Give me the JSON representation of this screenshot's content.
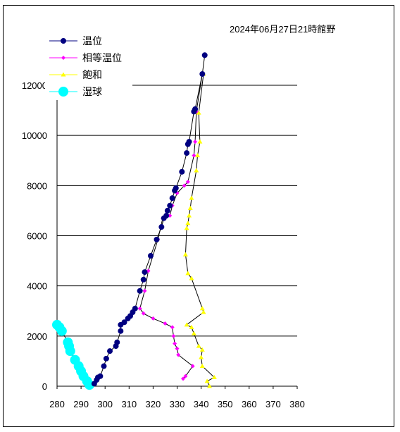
{
  "chart_data": {
    "type": "line",
    "title": "2024年06月27日21時館野",
    "xlabel": "",
    "ylabel": "",
    "xlim": [
      280,
      380
    ],
    "ylim": [
      0,
      12000
    ],
    "x_ticks": [
      "280",
      "290",
      "300",
      "310",
      "320",
      "330",
      "340",
      "350",
      "360",
      "370",
      "380"
    ],
    "y_ticks": [
      "0",
      "2000",
      "4000",
      "6000",
      "8000",
      "10000",
      "12000"
    ],
    "grid": "horizontal",
    "legend_position": "top-left",
    "series": [
      {
        "name": "温位",
        "color": "#000080",
        "marker": "circle",
        "points": [
          [
            295.5,
            100
          ],
          [
            296.5,
            250
          ],
          [
            297,
            350
          ],
          [
            298,
            400
          ],
          [
            299.5,
            800
          ],
          [
            300.5,
            1100
          ],
          [
            302,
            1400
          ],
          [
            304.5,
            1600
          ],
          [
            305,
            1750
          ],
          [
            306.5,
            2200
          ],
          [
            306.5,
            2450
          ],
          [
            308,
            2550
          ],
          [
            309.5,
            2700
          ],
          [
            310.5,
            2800
          ],
          [
            311.5,
            2950
          ],
          [
            312.5,
            3100
          ],
          [
            314.5,
            3800
          ],
          [
            316,
            4250
          ],
          [
            316.5,
            4550
          ],
          [
            319,
            5200
          ],
          [
            321.5,
            5850
          ],
          [
            323.5,
            6350
          ],
          [
            324.5,
            6700
          ],
          [
            325.5,
            6800
          ],
          [
            326,
            7000
          ],
          [
            327,
            7200
          ],
          [
            328,
            7500
          ],
          [
            329,
            7800
          ],
          [
            329.5,
            7900
          ],
          [
            332,
            8550
          ],
          [
            334,
            9300
          ],
          [
            334.5,
            9650
          ],
          [
            335,
            9750
          ],
          [
            337,
            10950
          ],
          [
            337.5,
            11050
          ],
          [
            340.5,
            12450
          ],
          [
            341.5,
            13200
          ]
        ]
      },
      {
        "name": "相等温位",
        "color": "#ff00ff",
        "marker": "diamond",
        "points": [
          [
            332.5,
            300
          ],
          [
            333.5,
            400
          ],
          [
            336.5,
            800
          ],
          [
            330.5,
            1250
          ],
          [
            330,
            1500
          ],
          [
            329,
            1700
          ],
          [
            328.5,
            2000
          ],
          [
            328,
            2350
          ],
          [
            325,
            2500
          ],
          [
            320,
            2700
          ],
          [
            316,
            2900
          ],
          [
            314.5,
            3100
          ],
          [
            316.5,
            3800
          ],
          [
            318,
            4600
          ],
          [
            322,
            5850
          ],
          [
            324,
            6700
          ],
          [
            327,
            6800
          ],
          [
            328,
            7200
          ],
          [
            330,
            7700
          ],
          [
            333,
            8000
          ],
          [
            334.5,
            8150
          ],
          [
            337,
            9200
          ],
          [
            337.5,
            9750
          ],
          [
            338,
            10950
          ],
          [
            340.5,
            12450
          ]
        ]
      },
      {
        "name": "飽和",
        "color": "#ffff00",
        "marker": "triangle",
        "points": [
          [
            343.5,
            0
          ],
          [
            342.5,
            200
          ],
          [
            345.5,
            350
          ],
          [
            340.5,
            800
          ],
          [
            340,
            1150
          ],
          [
            340.5,
            1450
          ],
          [
            339,
            1600
          ],
          [
            337,
            2100
          ],
          [
            336,
            2350
          ],
          [
            334,
            2450
          ],
          [
            341,
            2950
          ],
          [
            340.5,
            3100
          ],
          [
            336,
            4300
          ],
          [
            334.5,
            4500
          ],
          [
            333.5,
            5250
          ],
          [
            334,
            6300
          ],
          [
            334.5,
            6500
          ],
          [
            335,
            6800
          ],
          [
            335.5,
            7100
          ],
          [
            336,
            7500
          ],
          [
            338,
            8600
          ],
          [
            338.5,
            9200
          ],
          [
            339.5,
            9750
          ],
          [
            339,
            10900
          ],
          [
            341,
            12450
          ]
        ]
      },
      {
        "name": "湿球",
        "color": "#00ffff",
        "marker": "big-circle",
        "points": [
          [
            293.5,
            50
          ],
          [
            292.5,
            200
          ],
          [
            291,
            400
          ],
          [
            290,
            600
          ],
          [
            289,
            800
          ],
          [
            287.5,
            1050
          ],
          [
            285.5,
            1400
          ],
          [
            285,
            1600
          ],
          [
            284.5,
            1750
          ],
          [
            282,
            2200
          ],
          [
            281,
            2350
          ],
          [
            280,
            2450
          ]
        ]
      }
    ]
  }
}
